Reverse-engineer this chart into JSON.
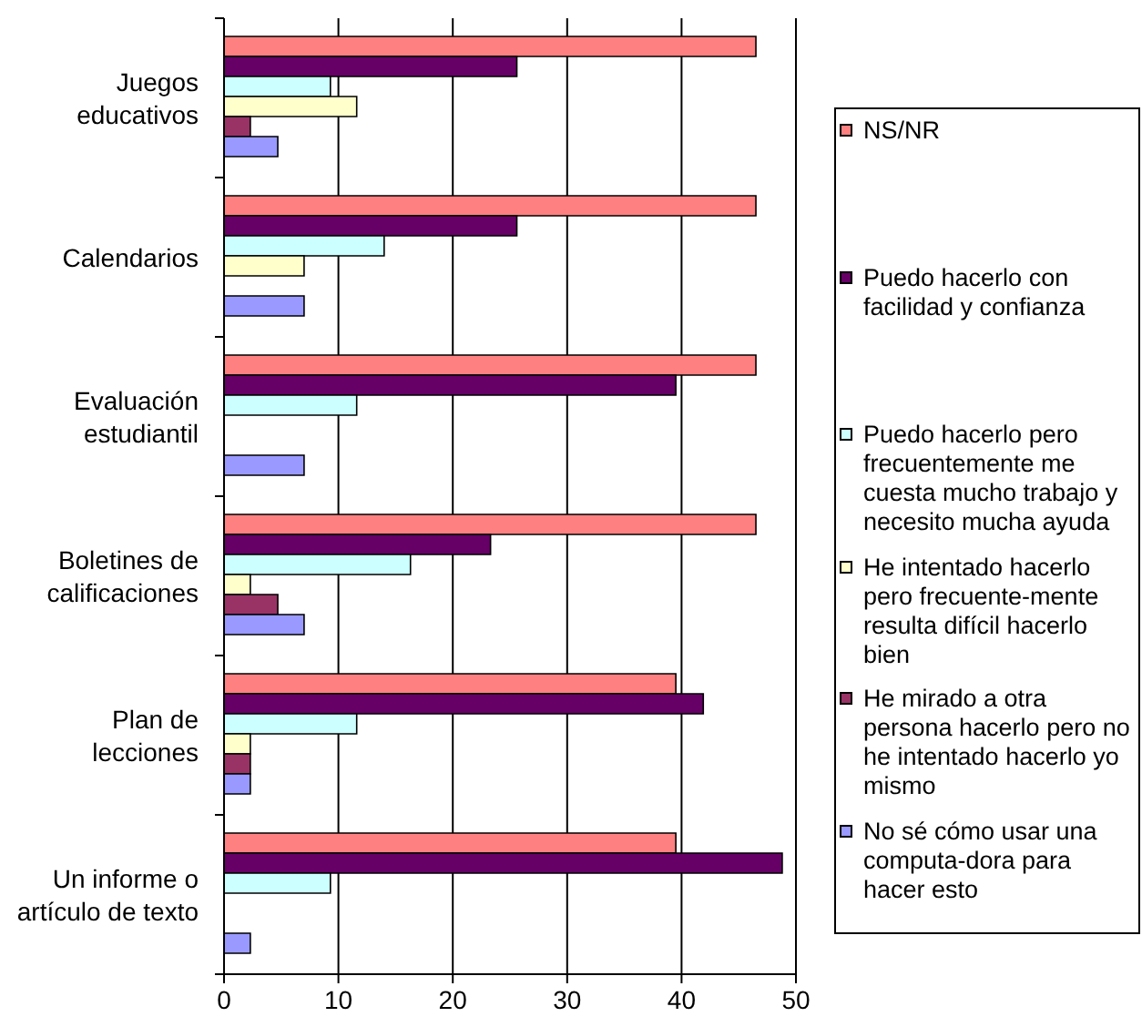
{
  "chart_data": {
    "type": "bar",
    "orientation": "horizontal",
    "categories": [
      "Juegos educativos",
      "Calendarios",
      "Evaluación estudiantil",
      "Boletines de calificaciones",
      "Plan de lecciones",
      "Un informe o artículo de texto"
    ],
    "series": [
      {
        "name": "NS/NR",
        "color": "#ff8080",
        "values": [
          46.5,
          46.5,
          46.5,
          46.5,
          39.5,
          39.5
        ]
      },
      {
        "name": "Puedo hacerlo con facilidad y confianza",
        "color": "#660066",
        "values": [
          25.6,
          25.6,
          39.5,
          23.3,
          41.9,
          48.8
        ]
      },
      {
        "name": "Puedo hacerlo pero frecuentemente me cuesta mucho trabajo y necesito mucha ayuda",
        "color": "#ccffff",
        "values": [
          9.3,
          14.0,
          11.6,
          16.3,
          11.6,
          9.3
        ]
      },
      {
        "name": "He intentado hacerlo pero frecuente-mente resulta difícil hacerlo bien",
        "color": "#ffffcc",
        "values": [
          11.6,
          7.0,
          0,
          2.3,
          2.3,
          0
        ]
      },
      {
        "name": "He mirado a otra persona hacerlo pero no he intentado hacerlo yo mismo",
        "color": "#993366",
        "values": [
          2.3,
          0,
          0,
          4.7,
          2.3,
          0
        ]
      },
      {
        "name": "No sé cómo usar una computa-dora para hacer esto",
        "color": "#9999ff",
        "values": [
          4.7,
          7.0,
          7.0,
          7.0,
          2.3,
          2.3
        ]
      }
    ],
    "xlim": [
      0,
      50
    ],
    "xticks": [
      0,
      10,
      20,
      30,
      40,
      50
    ],
    "grid": "x",
    "legend": "right"
  }
}
